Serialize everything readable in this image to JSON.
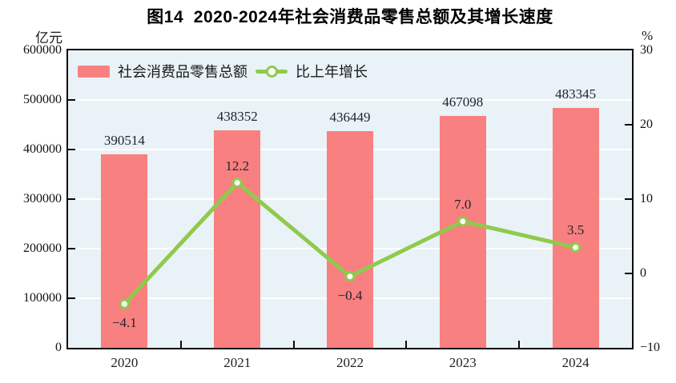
{
  "title": "图14  2020-2024年社会消费品零售总额及其增长速度",
  "chart_data": {
    "type": "bar+line",
    "categories": [
      "2020",
      "2021",
      "2022",
      "2023",
      "2024"
    ],
    "series": [
      {
        "name": "社会消费品零售总额",
        "type": "bar",
        "axis": "left",
        "values": [
          390514,
          438352,
          436449,
          467098,
          483345
        ],
        "labels": [
          "390514",
          "438352",
          "436449",
          "467098",
          "483345"
        ],
        "color": "#f88080"
      },
      {
        "name": "比上年增长",
        "type": "line",
        "axis": "right",
        "values": [
          -4.1,
          12.2,
          -0.4,
          7.0,
          3.5
        ],
        "labels": [
          "-4.1",
          "12.2",
          "-0.4",
          "7.0",
          "3.5"
        ],
        "color": "#8fca4c",
        "marker_fill": "#ffffff"
      }
    ],
    "left_axis": {
      "unit": "亿元",
      "min": 0,
      "max": 600000,
      "tick_step": 100000,
      "ticks": [
        "600000",
        "500000",
        "400000",
        "300000",
        "200000",
        "100000",
        "0"
      ]
    },
    "right_axis": {
      "unit": "%",
      "min": -10,
      "max": 30,
      "tick_step": 10,
      "ticks": [
        "30",
        "20",
        "10",
        "0",
        "-10"
      ]
    },
    "grid": "horizontal-white-at-left-axis-steps",
    "legend_position": "top-left-inside",
    "colors": {
      "plot_background": "#e9f2f7",
      "gridline": "#ffffff",
      "axis": "#0a0a0a",
      "text": "#1a1a1a"
    }
  }
}
